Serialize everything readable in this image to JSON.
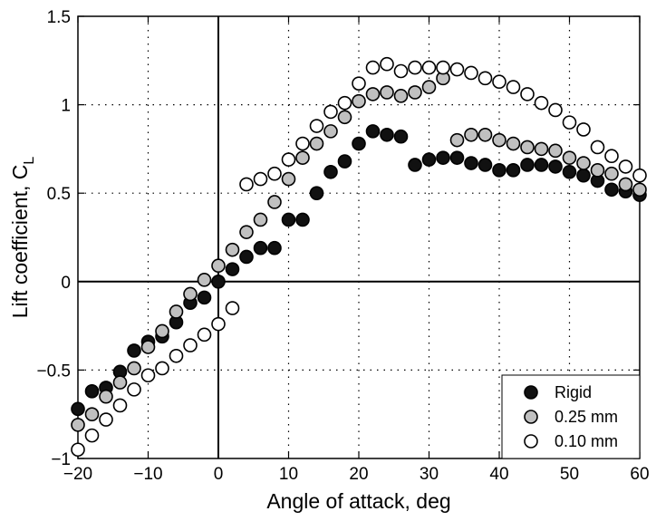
{
  "chart_data": {
    "type": "scatter",
    "xlabel": "Angle of attack, deg",
    "ylabel": "Lift coefficient, C",
    "ylabel_subscript": "L",
    "xlim": [
      -20,
      60
    ],
    "ylim": [
      -1,
      1.5
    ],
    "xticks": [
      -20,
      -10,
      0,
      10,
      20,
      30,
      40,
      50,
      60
    ],
    "xtick_labels": [
      "−20",
      "−10",
      "0",
      "10",
      "20",
      "30",
      "40",
      "50",
      "60"
    ],
    "yticks": [
      -1,
      -0.5,
      0,
      0.5,
      1,
      1.5
    ],
    "ytick_labels": [
      "−1",
      "−0.5",
      "0",
      "0.5",
      "1",
      "1.5"
    ],
    "grid": true,
    "legend_position": "bottom-right",
    "series": [
      {
        "name": "Rigid",
        "fill": "#111111",
        "stroke": "#000000",
        "x": [
          -20,
          -18,
          -16,
          -14,
          -12,
          -10,
          -8,
          -6,
          -4,
          -2,
          0,
          2,
          4,
          6,
          8,
          10,
          12,
          14,
          16,
          18,
          20,
          22,
          24,
          26,
          28,
          30,
          32,
          34,
          36,
          38,
          40,
          42,
          44,
          46,
          48,
          50,
          52,
          54,
          56,
          58,
          60
        ],
        "y": [
          -0.72,
          -0.62,
          -0.6,
          -0.51,
          -0.39,
          -0.34,
          -0.31,
          -0.23,
          -0.12,
          -0.09,
          0.0,
          0.07,
          0.14,
          0.19,
          0.19,
          0.35,
          0.35,
          0.5,
          0.62,
          0.68,
          0.78,
          0.85,
          0.83,
          0.82,
          0.66,
          0.69,
          0.7,
          0.7,
          0.67,
          0.66,
          0.63,
          0.63,
          0.66,
          0.66,
          0.65,
          0.62,
          0.6,
          0.57,
          0.52,
          0.51,
          0.49
        ]
      },
      {
        "name": "0.25 mm",
        "fill": "#c0c0c0",
        "stroke": "#000000",
        "x": [
          -20,
          -18,
          -16,
          -14,
          -12,
          -10,
          -8,
          -6,
          -4,
          -2,
          0,
          2,
          4,
          6,
          8,
          10,
          12,
          14,
          16,
          18,
          20,
          22,
          24,
          26,
          28,
          30,
          32,
          34,
          36,
          38,
          40,
          42,
          44,
          46,
          48,
          50,
          52,
          54,
          56,
          58,
          60
        ],
        "y": [
          -0.81,
          -0.75,
          -0.65,
          -0.57,
          -0.49,
          -0.37,
          -0.28,
          -0.17,
          -0.07,
          0.01,
          0.09,
          0.18,
          0.28,
          0.35,
          0.45,
          0.58,
          0.7,
          0.78,
          0.85,
          0.93,
          1.02,
          1.06,
          1.07,
          1.05,
          1.07,
          1.1,
          1.15,
          0.8,
          0.83,
          0.83,
          0.8,
          0.78,
          0.76,
          0.75,
          0.74,
          0.7,
          0.67,
          0.63,
          0.61,
          0.55,
          0.52
        ]
      },
      {
        "name": "0.10 mm",
        "fill": "#ffffff",
        "stroke": "#000000",
        "x": [
          -20,
          -18,
          -16,
          -14,
          -12,
          -10,
          -8,
          -6,
          -4,
          -2,
          0,
          2,
          4,
          6,
          8,
          10,
          12,
          14,
          16,
          18,
          20,
          22,
          24,
          26,
          28,
          30,
          32,
          34,
          36,
          38,
          40,
          42,
          44,
          46,
          48,
          50,
          52,
          54,
          56,
          58,
          60
        ],
        "y": [
          -0.95,
          -0.87,
          -0.78,
          -0.7,
          -0.61,
          -0.53,
          -0.49,
          -0.42,
          -0.36,
          -0.3,
          -0.24,
          -0.15,
          0.55,
          0.58,
          0.61,
          0.69,
          0.78,
          0.88,
          0.96,
          1.01,
          1.12,
          1.21,
          1.23,
          1.19,
          1.21,
          1.21,
          1.21,
          1.2,
          1.18,
          1.15,
          1.13,
          1.1,
          1.06,
          1.01,
          0.97,
          0.9,
          0.86,
          0.76,
          0.71,
          0.65,
          0.6
        ]
      }
    ]
  }
}
